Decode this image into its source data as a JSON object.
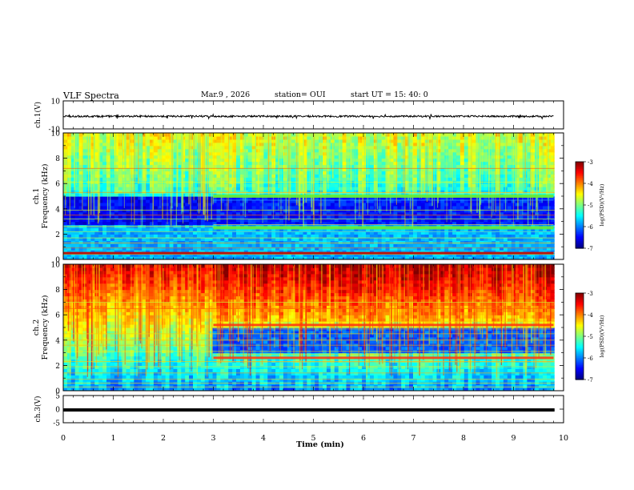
{
  "header": {
    "title": "VLF Spectra",
    "date": "Mar.9 , 2026",
    "station": "station= OUI",
    "start": "start UT = 15: 40: 0"
  },
  "chart_data": [
    {
      "type": "line",
      "name": "ch1-waveform",
      "ylabel": "ch.1(V)",
      "ylim": [
        -10,
        10
      ],
      "yticks": [
        "10",
        "-10"
      ],
      "xlim": [
        0,
        10
      ],
      "series": [
        {
          "name": "ch.1",
          "description": "noise around -1 V, amplitude about +/-1 V",
          "center": -1,
          "amplitude": 1
        }
      ]
    },
    {
      "type": "heatmap",
      "name": "ch1-spectrogram",
      "ylabel": "ch.1 Frequency (kHz)",
      "ylim": [
        0,
        10
      ],
      "yticks": [
        "0",
        "2",
        "4",
        "6",
        "8",
        "10"
      ],
      "xlim": [
        0,
        9.8
      ],
      "colorbar": {
        "label": "log(PSD)(V²/Hz)",
        "range": [
          -7,
          -3
        ],
        "ticks": [
          "-3",
          "-4",
          "-5",
          "-6",
          "-7"
        ]
      },
      "features": [
        {
          "kind": "band",
          "freq_khz": 5.0,
          "from_min": 3.0,
          "to_min": 9.8
        },
        {
          "kind": "band",
          "freq_khz": 2.5,
          "from_min": 3.0,
          "to_min": 9.8
        },
        {
          "kind": "line",
          "freq_khz": 0.5,
          "from_min": 0,
          "to_min": 9.8
        }
      ]
    },
    {
      "type": "heatmap",
      "name": "ch2-spectrogram",
      "ylabel": "ch.2 Frequency (kHz)",
      "ylim": [
        0,
        10
      ],
      "yticks": [
        "0",
        "2",
        "4",
        "6",
        "8",
        "10"
      ],
      "xlim": [
        0,
        9.8
      ],
      "colorbar": {
        "label": "log(PSD)(V²/Hz)",
        "range": [
          -7,
          -3
        ],
        "ticks": [
          "-3",
          "-4",
          "-5",
          "-6",
          "-7"
        ]
      },
      "features": [
        {
          "kind": "band",
          "freq_khz": 5.2,
          "from_min": 3.0,
          "to_min": 9.8
        },
        {
          "kind": "band",
          "freq_khz": 2.6,
          "from_min": 3.0,
          "to_min": 9.8
        }
      ]
    },
    {
      "type": "line",
      "name": "ch3-waveform",
      "ylabel": "ch.3(V)",
      "ylim": [
        -5,
        5
      ],
      "yticks": [
        "5",
        "0",
        "-5"
      ],
      "xlim": [
        0,
        10
      ],
      "series": [
        {
          "name": "ch.3",
          "description": "flat at about 0 V",
          "center": 0,
          "amplitude": 0
        }
      ]
    }
  ],
  "xaxis": {
    "label": "Time (min)",
    "ticks": [
      "0",
      "1",
      "2",
      "3",
      "4",
      "5",
      "6",
      "7",
      "8",
      "9",
      "10"
    ]
  }
}
